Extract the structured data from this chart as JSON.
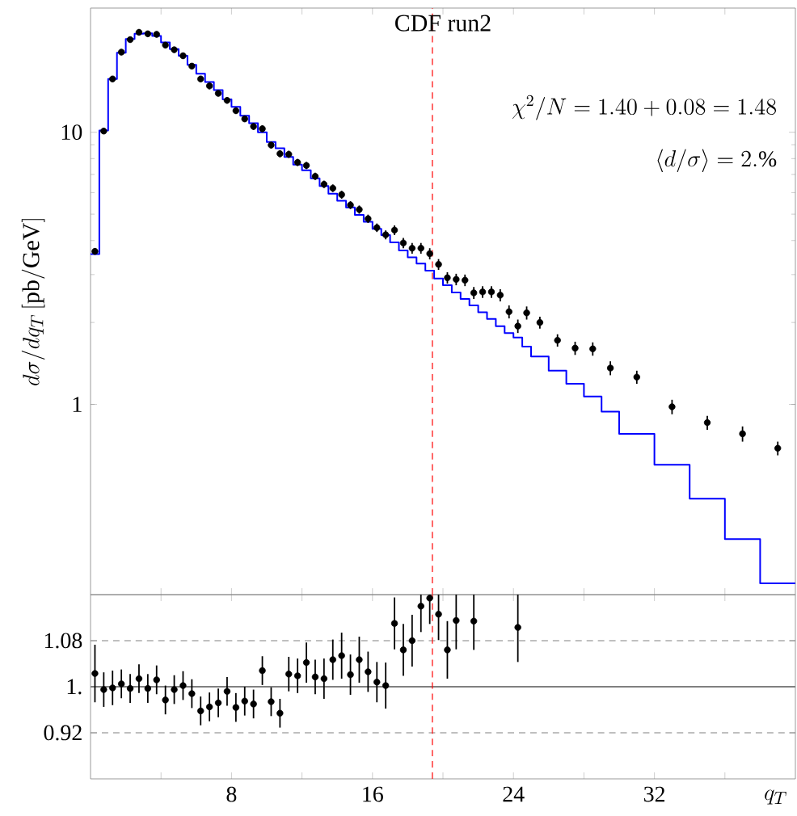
{
  "chart_data": [
    {
      "type": "scatter",
      "title": "CDF run2",
      "ylabel": "d\\sigma/dq_T\\,[\\mathrm{pb/GeV}]",
      "annotations": [
        "\\chi^2/N=1.40+0.08=1.48",
        "\\langle d/\\sigma\\rangle=2.\\%"
      ],
      "xlim": [
        0,
        40
      ],
      "ylim": [
        0.2,
        28.6
      ],
      "log": "y",
      "xticks": [
        {
          "value": 4,
          "label": null
        },
        {
          "value": 8,
          "label": null
        },
        {
          "value": 12,
          "label": null
        },
        {
          "value": 16,
          "label": null
        },
        {
          "value": 20,
          "label": null
        },
        {
          "value": 24,
          "label": null
        },
        {
          "value": 28,
          "label": null
        },
        {
          "value": 32,
          "label": null
        },
        {
          "value": 36,
          "label": null
        }
      ],
      "yticks": [
        1,
        10
      ],
      "tick_labels": "y",
      "marker": "circle",
      "ref_lines": [
        {
          "axis": "x",
          "value": 19.4,
          "color": "#ff0000",
          "line_style": "dashed"
        }
      ],
      "x": [
        0.25,
        0.75,
        1.25,
        1.75,
        2.25,
        2.75,
        3.25,
        3.75,
        4.25,
        4.75,
        5.25,
        5.75,
        6.25,
        6.75,
        7.25,
        7.75,
        8.25,
        8.75,
        9.25,
        9.75,
        10.25,
        10.75,
        11.25,
        11.75,
        12.25,
        12.75,
        13.25,
        13.75,
        14.25,
        14.75,
        15.25,
        15.75,
        16.25,
        16.75,
        17.25,
        17.75,
        18.25,
        18.75,
        19.25,
        19.75,
        20.25,
        20.75,
        21.25,
        21.75,
        22.25,
        22.75,
        23.25,
        23.75,
        24.25,
        24.75,
        25.5,
        26.5,
        27.5,
        28.5,
        29.5,
        31,
        33,
        35,
        37,
        39
      ],
      "series": [
        {
          "type": "histogram",
          "color": "#0000ff",
          "bins": [
            0,
            0.5,
            1,
            1.5,
            2,
            2.5,
            3,
            3.5,
            4,
            4.5,
            5,
            5.5,
            6,
            6.5,
            7,
            7.5,
            8,
            8.5,
            9,
            9.5,
            10,
            10.5,
            11,
            11.5,
            12,
            12.5,
            13,
            13.5,
            14,
            14.5,
            15,
            15.5,
            16,
            16.5,
            17,
            17.5,
            18,
            18.5,
            19,
            19.5,
            20,
            20.5,
            21,
            21.5,
            22,
            22.5,
            23,
            23.5,
            24,
            24.5,
            25,
            26,
            27,
            28,
            29,
            30,
            32,
            34,
            36,
            38,
            40
          ],
          "values": [
            3.57,
            10.15,
            15.7,
            19.6,
            22.0,
            23.0,
            23.1,
            22.6,
            21.4,
            20.2,
            19.1,
            17.7,
            16.4,
            15.3,
            14.3,
            13.2,
            12.4,
            11.5,
            10.8,
            10.0,
            9.21,
            8.74,
            8.12,
            7.61,
            7.25,
            6.77,
            6.35,
            5.95,
            5.6,
            5.29,
            4.97,
            4.69,
            4.42,
            4.19,
            3.94,
            3.68,
            3.47,
            3.29,
            3.1,
            2.9,
            2.74,
            2.58,
            2.44,
            2.31,
            2.18,
            2.06,
            1.94,
            1.83,
            1.76,
            1.63,
            1.5,
            1.33,
            1.19,
            1.07,
            0.94,
            0.78,
            0.6,
            0.45,
            0.32,
            0.22
          ]
        },
        {
          "color": "#000000",
          "values": [
            3.65,
            10.1,
            15.7,
            19.7,
            21.9,
            23.3,
            23.0,
            22.9,
            20.9,
            20.1,
            19.1,
            17.5,
            15.7,
            14.8,
            13.9,
            13.1,
            12.0,
            11.2,
            10.5,
            10.3,
            8.97,
            8.34,
            8.3,
            7.75,
            7.55,
            6.89,
            6.44,
            6.23,
            5.9,
            5.4,
            5.2,
            4.81,
            4.46,
            4.2,
            4.37,
            3.92,
            3.75,
            3.75,
            3.58,
            3.27,
            2.92,
            2.88,
            2.86,
            2.57,
            2.59,
            2.59,
            2.52,
            2.19,
            1.94,
            2.17,
            2.0,
            1.72,
            1.61,
            1.6,
            1.36,
            1.26,
            0.98,
            0.857,
            0.78,
            0.69
          ],
          "errors": [
            0.1,
            0.25,
            0.4,
            0.5,
            0.5,
            0.6,
            0.6,
            0.6,
            0.5,
            0.5,
            0.5,
            0.4,
            0.4,
            0.4,
            0.35,
            0.35,
            0.3,
            0.3,
            0.3,
            0.3,
            0.25,
            0.25,
            0.25,
            0.23,
            0.23,
            0.21,
            0.2,
            0.2,
            0.2,
            0.18,
            0.18,
            0.17,
            0.16,
            0.16,
            0.18,
            0.17,
            0.17,
            0.17,
            0.17,
            0.15,
            0.14,
            0.14,
            0.14,
            0.13,
            0.13,
            0.13,
            0.13,
            0.12,
            0.11,
            0.12,
            0.1,
            0.09,
            0.09,
            0.09,
            0.08,
            0.07,
            0.06,
            0.05,
            0.05,
            0.04
          ]
        }
      ]
    },
    {
      "type": "scatter",
      "xlabel": "q_T",
      "xlim": [
        0,
        40
      ],
      "ylim": [
        0.84,
        1.16
      ],
      "xticks": [
        {
          "value": 4,
          "label": null
        },
        8,
        {
          "value": 12,
          "label": null
        },
        16,
        {
          "value": 20,
          "label": null
        },
        24,
        {
          "value": 28,
          "label": null
        },
        32,
        {
          "value": 36,
          "label": null
        }
      ],
      "yticks": [
        0.92,
        {
          "value": 1,
          "label": "1."
        },
        1.08
      ],
      "marker": "circle",
      "ref_lines": [
        {
          "axis": "y",
          "value": 1,
          "color": "#808080",
          "line_style": "solid"
        },
        {
          "axis": "y",
          "value": 1.08,
          "color": "#808080",
          "line_style": "dashed"
        },
        {
          "axis": "y",
          "value": 0.92,
          "color": "#808080",
          "line_style": "dashed"
        },
        {
          "axis": "x",
          "value": 19.4,
          "color": "#ff0000",
          "line_style": "dashed"
        }
      ],
      "x": [
        0.25,
        0.75,
        1.25,
        1.75,
        2.25,
        2.75,
        3.25,
        3.75,
        4.25,
        4.75,
        5.25,
        5.75,
        6.25,
        6.75,
        7.25,
        7.75,
        8.25,
        8.75,
        9.25,
        9.75,
        10.25,
        10.75,
        11.25,
        11.75,
        12.25,
        12.75,
        13.25,
        13.75,
        14.25,
        14.75,
        15.25,
        15.75,
        16.25,
        16.75,
        17.25,
        17.75,
        18.25,
        18.75,
        19.25,
        19.75,
        20.25,
        20.75,
        21.75,
        24.25
      ],
      "series": [
        {
          "color": "#000000",
          "values": [
            1.023,
            0.995,
            0.998,
            1.005,
            0.997,
            1.014,
            0.997,
            1.012,
            0.977,
            0.995,
            1.002,
            0.988,
            0.958,
            0.965,
            0.972,
            0.992,
            0.964,
            0.975,
            0.97,
            1.028,
            0.974,
            0.954,
            1.022,
            1.019,
            1.042,
            1.017,
            1.014,
            1.047,
            1.054,
            1.021,
            1.047,
            1.026,
            1.008,
            1.002,
            1.11,
            1.064,
            1.08,
            1.14,
            1.154,
            1.126,
            1.064,
            1.115,
            1.114,
            1.103
          ],
          "errors": [
            0.05,
            0.03,
            0.03,
            0.025,
            0.025,
            0.025,
            0.025,
            0.025,
            0.025,
            0.025,
            0.025,
            0.025,
            0.025,
            0.025,
            0.025,
            0.025,
            0.025,
            0.025,
            0.025,
            0.025,
            0.025,
            0.025,
            0.03,
            0.03,
            0.035,
            0.03,
            0.035,
            0.035,
            0.04,
            0.035,
            0.04,
            0.035,
            0.035,
            0.04,
            0.045,
            0.045,
            0.045,
            [
              1.095,
              1.16
            ],
            [
              1.109,
              1.16
            ],
            [
              1.081,
              1.16
            ],
            0.05,
            [
              1.065,
              1.16
            ],
            [
              1.064,
              1.16
            ],
            [
              1.043,
              1.16
            ]
          ]
        }
      ]
    }
  ]
}
